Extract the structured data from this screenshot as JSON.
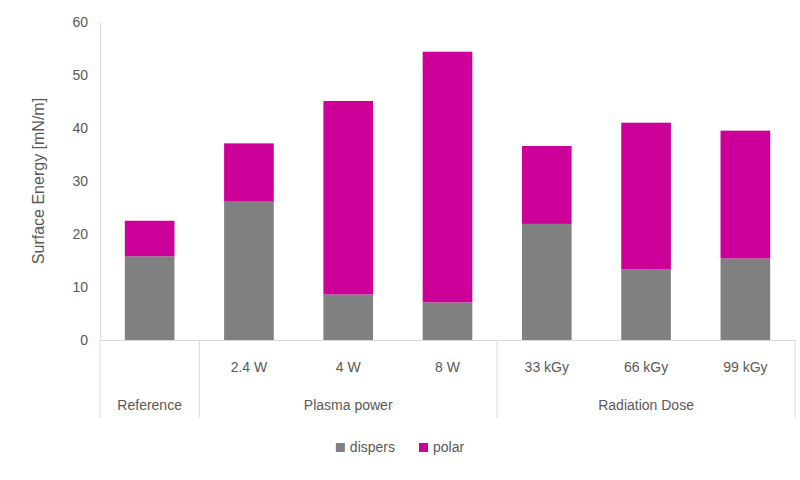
{
  "chart_data": {
    "type": "bar",
    "stacked": true,
    "y_label": "Surface Energy [mN/m]",
    "categories": [
      null,
      "2.4 W",
      "4 W",
      "8 W",
      "33 kGy",
      "66 kGy",
      "99 kGy"
    ],
    "groups": [
      "Reference",
      "Plasma power",
      "Plasma power",
      "Plasma power",
      "Radiation Dose",
      "Radiation Dose",
      "Radiation Dose"
    ],
    "series": [
      {
        "name": "dispers",
        "color": "#808080",
        "values": [
          15.8,
          26.1,
          8.6,
          7.1,
          21.9,
          13.3,
          15.4
        ]
      },
      {
        "name": "polar",
        "color": "#cc0099",
        "values": [
          6.7,
          11.0,
          36.5,
          47.3,
          14.7,
          27.7,
          24.1
        ]
      }
    ],
    "ylim": [
      0,
      60
    ],
    "yticks": [
      0,
      10,
      20,
      30,
      40,
      50,
      60
    ],
    "grid": false,
    "legend": "bottom"
  }
}
